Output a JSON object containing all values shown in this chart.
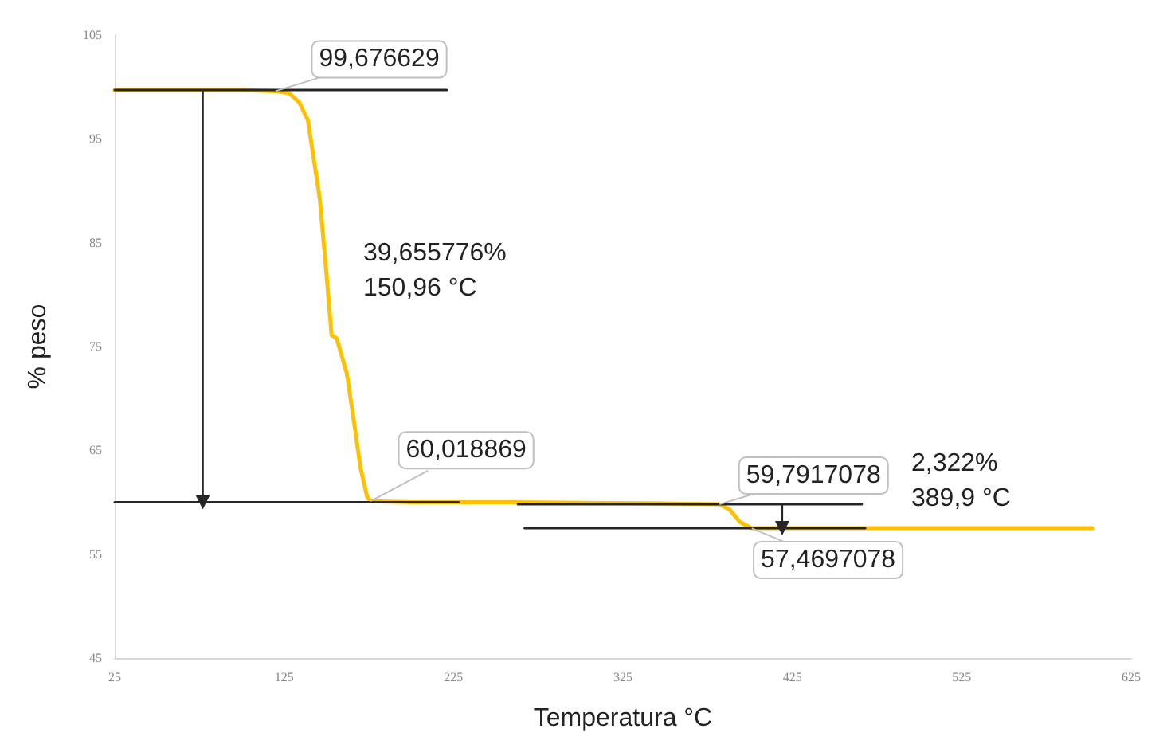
{
  "chart_data": {
    "type": "line",
    "xlabel": "Temperatura °C",
    "ylabel": "% peso",
    "xlim": [
      25,
      625
    ],
    "xticks": [
      25,
      125,
      225,
      325,
      425,
      525,
      625
    ],
    "ylim": [
      45,
      105
    ],
    "yticks": [
      45,
      55,
      65,
      75,
      85,
      95,
      105
    ],
    "grid": false,
    "marker": "none",
    "line_style": "solid",
    "series": [
      {
        "color": "#ffc000",
        "x": [
          25,
          100,
          120,
          128,
          134,
          139,
          146,
          150,
          153,
          156,
          162,
          166,
          170,
          174,
          176,
          200,
          260,
          340,
          382,
          388,
          394,
          401,
          420,
          500,
          602
        ],
        "values": [
          99.7,
          99.7,
          99.6,
          99.4,
          98.5,
          96.8,
          89.3,
          82,
          76.1,
          75.8,
          72.4,
          68,
          63.4,
          60.5,
          60.1,
          60.0,
          60.0,
          59.9,
          59.8,
          59.3,
          58.1,
          57.5,
          57.5,
          57.5,
          57.5
        ]
      },
      {
        "color": "#262626",
        "x": [
          25,
          221
        ],
        "values": [
          99.7,
          99.7
        ]
      },
      {
        "color": "#262626",
        "x": [
          25,
          228
        ],
        "values": [
          60.0,
          60.0
        ]
      },
      {
        "color": "#262626",
        "x": [
          263,
          466
        ],
        "values": [
          59.8,
          59.8
        ]
      },
      {
        "color": "#262626",
        "x": [
          267,
          468
        ],
        "values": [
          57.5,
          57.5
        ]
      },
      {
        "color": "#262626",
        "x": [
          77,
          77
        ],
        "values": [
          99.7,
          60.0
        ],
        "marker": "triangle"
      },
      {
        "color": "#262626",
        "x": [
          419,
          419
        ],
        "values": [
          59.8,
          57.5
        ],
        "marker": "triangle"
      }
    ],
    "annotations": [
      {
        "text": "99,676629",
        "x": 120,
        "y": 99.6
      },
      {
        "text": "60,018869",
        "x": 176,
        "y": 60.1
      },
      {
        "text": "59,7917078",
        "x": 382,
        "y": 59.8
      },
      {
        "text": "57,4697078",
        "x": 401,
        "y": 57.5
      },
      "39,655776%\n150,96 °C",
      "2,322%\n389,9 °C"
    ]
  }
}
